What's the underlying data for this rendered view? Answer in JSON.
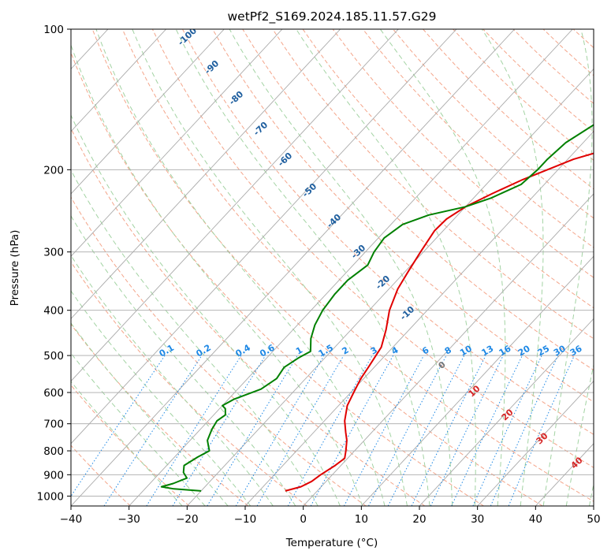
{
  "chart_data": {
    "type": "line",
    "subtype": "skew-t log-p diagram",
    "title": "wetPf2_S169.2024.185.11.57.G29",
    "xlabel": "Temperature (°C)",
    "ylabel": "Pressure (hPa)",
    "xlim": [
      -40,
      50
    ],
    "ylim": [
      1050,
      100
    ],
    "y_scale": "log",
    "x_ticks": [
      -40,
      -30,
      -20,
      -10,
      0,
      10,
      20,
      30,
      40,
      50
    ],
    "y_ticks": [
      100,
      200,
      300,
      400,
      500,
      600,
      700,
      800,
      900,
      1000
    ],
    "grid": true,
    "colors": {
      "temperature": "#e00000",
      "dewpoint": "#008000",
      "isotherm": "#aaaaaa",
      "dry_adiabat": "#f4a58a",
      "moist_adiabat": "#a3d3a3",
      "mixing_ratio": "#1e88e5",
      "isotherm_label": "#1f5f9f",
      "moist_label": "#d62728",
      "grid": "#aaaaaa"
    },
    "series": [
      {
        "key": "temperature",
        "points": [
          [
            -5.5,
            975
          ],
          [
            -3.5,
            955
          ],
          [
            -2.5,
            930
          ],
          [
            -2,
            900
          ],
          [
            -1,
            860
          ],
          [
            -0.5,
            830
          ],
          [
            -1.5,
            800
          ],
          [
            -3,
            760
          ],
          [
            -4.5,
            730
          ],
          [
            -6.5,
            690
          ],
          [
            -8.5,
            640
          ],
          [
            -9.5,
            600
          ],
          [
            -10.5,
            560
          ],
          [
            -11,
            530
          ],
          [
            -12,
            480
          ],
          [
            -14,
            440
          ],
          [
            -16.5,
            400
          ],
          [
            -18.5,
            360
          ],
          [
            -19.5,
            330
          ],
          [
            -20.5,
            300
          ],
          [
            -21.5,
            270
          ],
          [
            -21.3,
            255
          ],
          [
            -20,
            240
          ],
          [
            -17.5,
            225
          ],
          [
            -14.5,
            210
          ],
          [
            -9,
            190
          ],
          [
            -2,
            175
          ],
          [
            3,
            165
          ],
          [
            4.5,
            160
          ],
          [
            6.5,
            150
          ],
          [
            8.5,
            135
          ],
          [
            10,
            125
          ],
          [
            12,
            115
          ],
          [
            14,
            105
          ],
          [
            14.5,
            100
          ]
        ]
      },
      {
        "key": "dewpoint",
        "points": [
          [
            -20,
            975
          ],
          [
            -25,
            965
          ],
          [
            -27.5,
            955
          ],
          [
            -26,
            940
          ],
          [
            -24.5,
            915
          ],
          [
            -26,
            890
          ],
          [
            -27,
            860
          ],
          [
            -26,
            825
          ],
          [
            -25,
            800
          ],
          [
            -26,
            780
          ],
          [
            -27,
            760
          ],
          [
            -28,
            720
          ],
          [
            -28.5,
            690
          ],
          [
            -28,
            670
          ],
          [
            -29,
            650
          ],
          [
            -30,
            640
          ],
          [
            -29,
            620
          ],
          [
            -26,
            590
          ],
          [
            -25,
            560
          ],
          [
            -25.5,
            530
          ],
          [
            -24.5,
            505
          ],
          [
            -23.5,
            490
          ],
          [
            -25.5,
            460
          ],
          [
            -27,
            430
          ],
          [
            -28,
            400
          ],
          [
            -28.5,
            370
          ],
          [
            -28.5,
            345
          ],
          [
            -27.5,
            320
          ],
          [
            -28.5,
            300
          ],
          [
            -29,
            280
          ],
          [
            -28,
            262
          ],
          [
            -25,
            250
          ],
          [
            -20,
            240
          ],
          [
            -17,
            230
          ],
          [
            -14,
            215
          ],
          [
            -13.5,
            200
          ],
          [
            -13.5,
            190
          ],
          [
            -13,
            175
          ],
          [
            -11,
            160
          ],
          [
            -9,
            145
          ],
          [
            -6,
            130
          ],
          [
            -3,
            120
          ],
          [
            -0.5,
            110
          ],
          [
            1,
            105
          ],
          [
            1.5,
            100
          ]
        ]
      }
    ],
    "isotherm_labels": [
      "-100",
      "-90",
      "-80",
      "-70",
      "-60",
      "-50",
      "-40",
      "-30",
      "-20",
      "-10"
    ],
    "mixing_ratio_labels": [
      "0.1",
      "0.2",
      "0.4",
      "0.6",
      "1",
      "1.5",
      "2",
      "3",
      "4",
      "6",
      "8",
      "10",
      "13",
      "16",
      "20",
      "25",
      "30",
      "36"
    ],
    "moist_labels": [
      "0",
      "10",
      "20",
      "30",
      "40"
    ]
  }
}
